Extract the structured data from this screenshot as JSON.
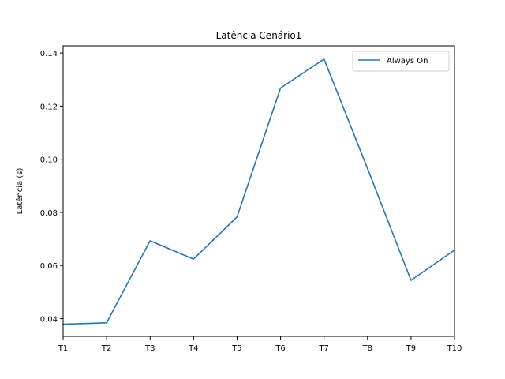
{
  "chart_data": {
    "type": "line",
    "title": "Latência Cenário1",
    "xlabel": "",
    "ylabel": "Latência (s)",
    "categories": [
      "T1",
      "T2",
      "T3",
      "T4",
      "T5",
      "T6",
      "T7",
      "T8",
      "T9",
      "T10"
    ],
    "series": [
      {
        "name": "Always On",
        "color": "#1f77b4",
        "values": [
          0.0379,
          0.0384,
          0.0693,
          0.0624,
          0.0783,
          0.1268,
          0.1377,
          0.0965,
          0.0544,
          0.0658
        ]
      }
    ],
    "ylim": [
      0.0333,
      0.1427
    ],
    "yticks": [
      0.04,
      0.06,
      0.08,
      0.1,
      0.12,
      0.14
    ],
    "ytick_labels": [
      "0.04",
      "0.06",
      "0.08",
      "0.10",
      "0.12",
      "0.14"
    ],
    "grid": false,
    "legend_position": "top-right"
  }
}
